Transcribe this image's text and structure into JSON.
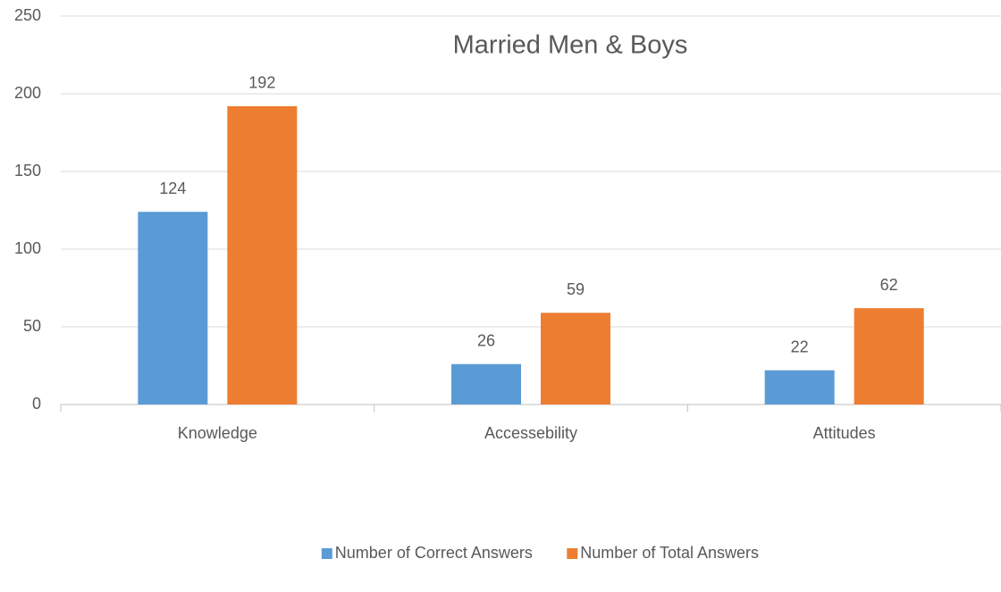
{
  "chart_data": {
    "type": "bar",
    "title": "Married Men & Boys",
    "categories": [
      "Knowledge",
      "Accessebility",
      "Attitudes"
    ],
    "series": [
      {
        "name": "Number of Correct Answers",
        "color": "#5b9bd5",
        "values": [
          124,
          26,
          22
        ]
      },
      {
        "name": "Number of Total Answers",
        "color": "#ed7d31",
        "values": [
          192,
          59,
          62
        ]
      }
    ],
    "ylim": [
      0,
      250
    ],
    "yticks": [
      0,
      50,
      100,
      150,
      200,
      250
    ],
    "grid": true,
    "legend": "bottom"
  }
}
